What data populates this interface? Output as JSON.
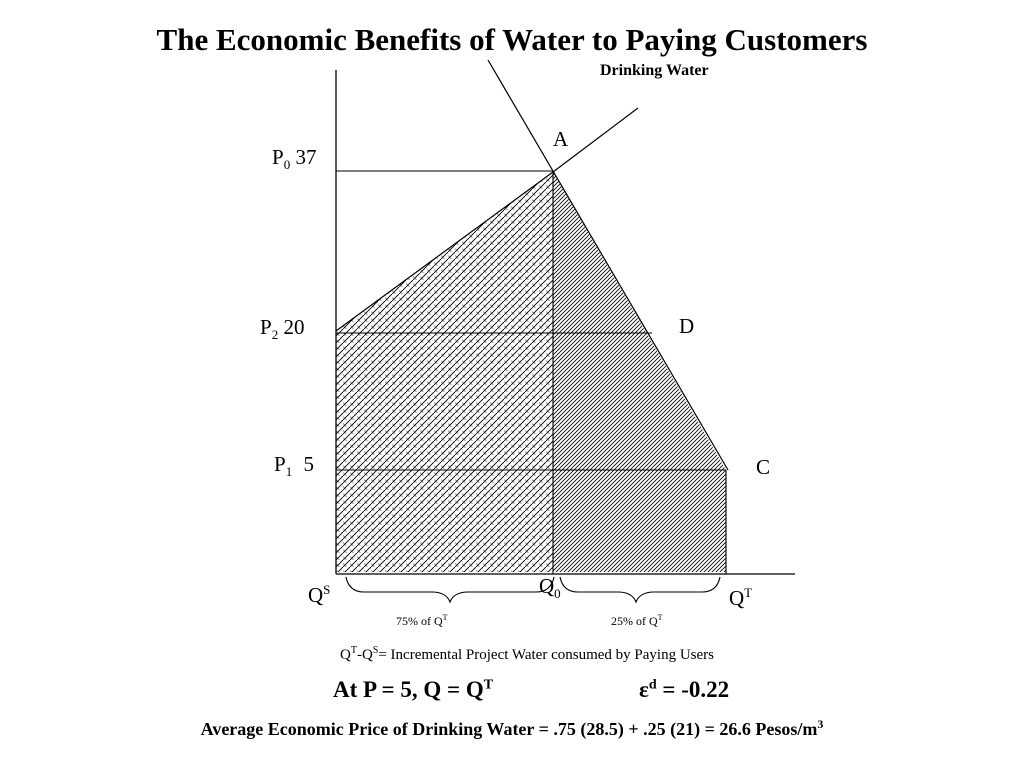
{
  "title": "The Economic Benefits of Water to Paying Customers",
  "subtitle": "Drinking Water",
  "price_labels": {
    "p0": {
      "letter": "P",
      "sub": "0",
      "value": "37"
    },
    "p2": {
      "letter": "P",
      "sub": "2",
      "value": "20"
    },
    "p1": {
      "letter": "P",
      "sub": "1",
      "value": "5"
    }
  },
  "point_labels": {
    "a": "A",
    "d": "D",
    "c": "C"
  },
  "quantity_labels": {
    "qs": {
      "letter": "Q",
      "sup": "S"
    },
    "q0": {
      "letter": "Q",
      "sub": "0"
    },
    "qt": {
      "letter": "Q",
      "sup": "T"
    }
  },
  "brace_labels": {
    "left": {
      "text": "75% of Q",
      "sup": "T"
    },
    "right": {
      "text": "25% of Q",
      "sup": "T"
    }
  },
  "equation_line": {
    "q1": "Q",
    "s1": "T",
    "dash": "-Q",
    "s2": "S",
    "rest": "= Incremental Project Water consumed by Paying Users"
  },
  "condition": {
    "text": "At P = 5, Q = Q",
    "sup": "T"
  },
  "elasticity": {
    "symbol": "ε",
    "sup": "d",
    "text": " = -0.22"
  },
  "average_price": {
    "text": "Average Economic Price of Drinking Water = .75 (28.5) + .25 (21) = 26.6 Pesos/m",
    "sup": "3"
  }
}
